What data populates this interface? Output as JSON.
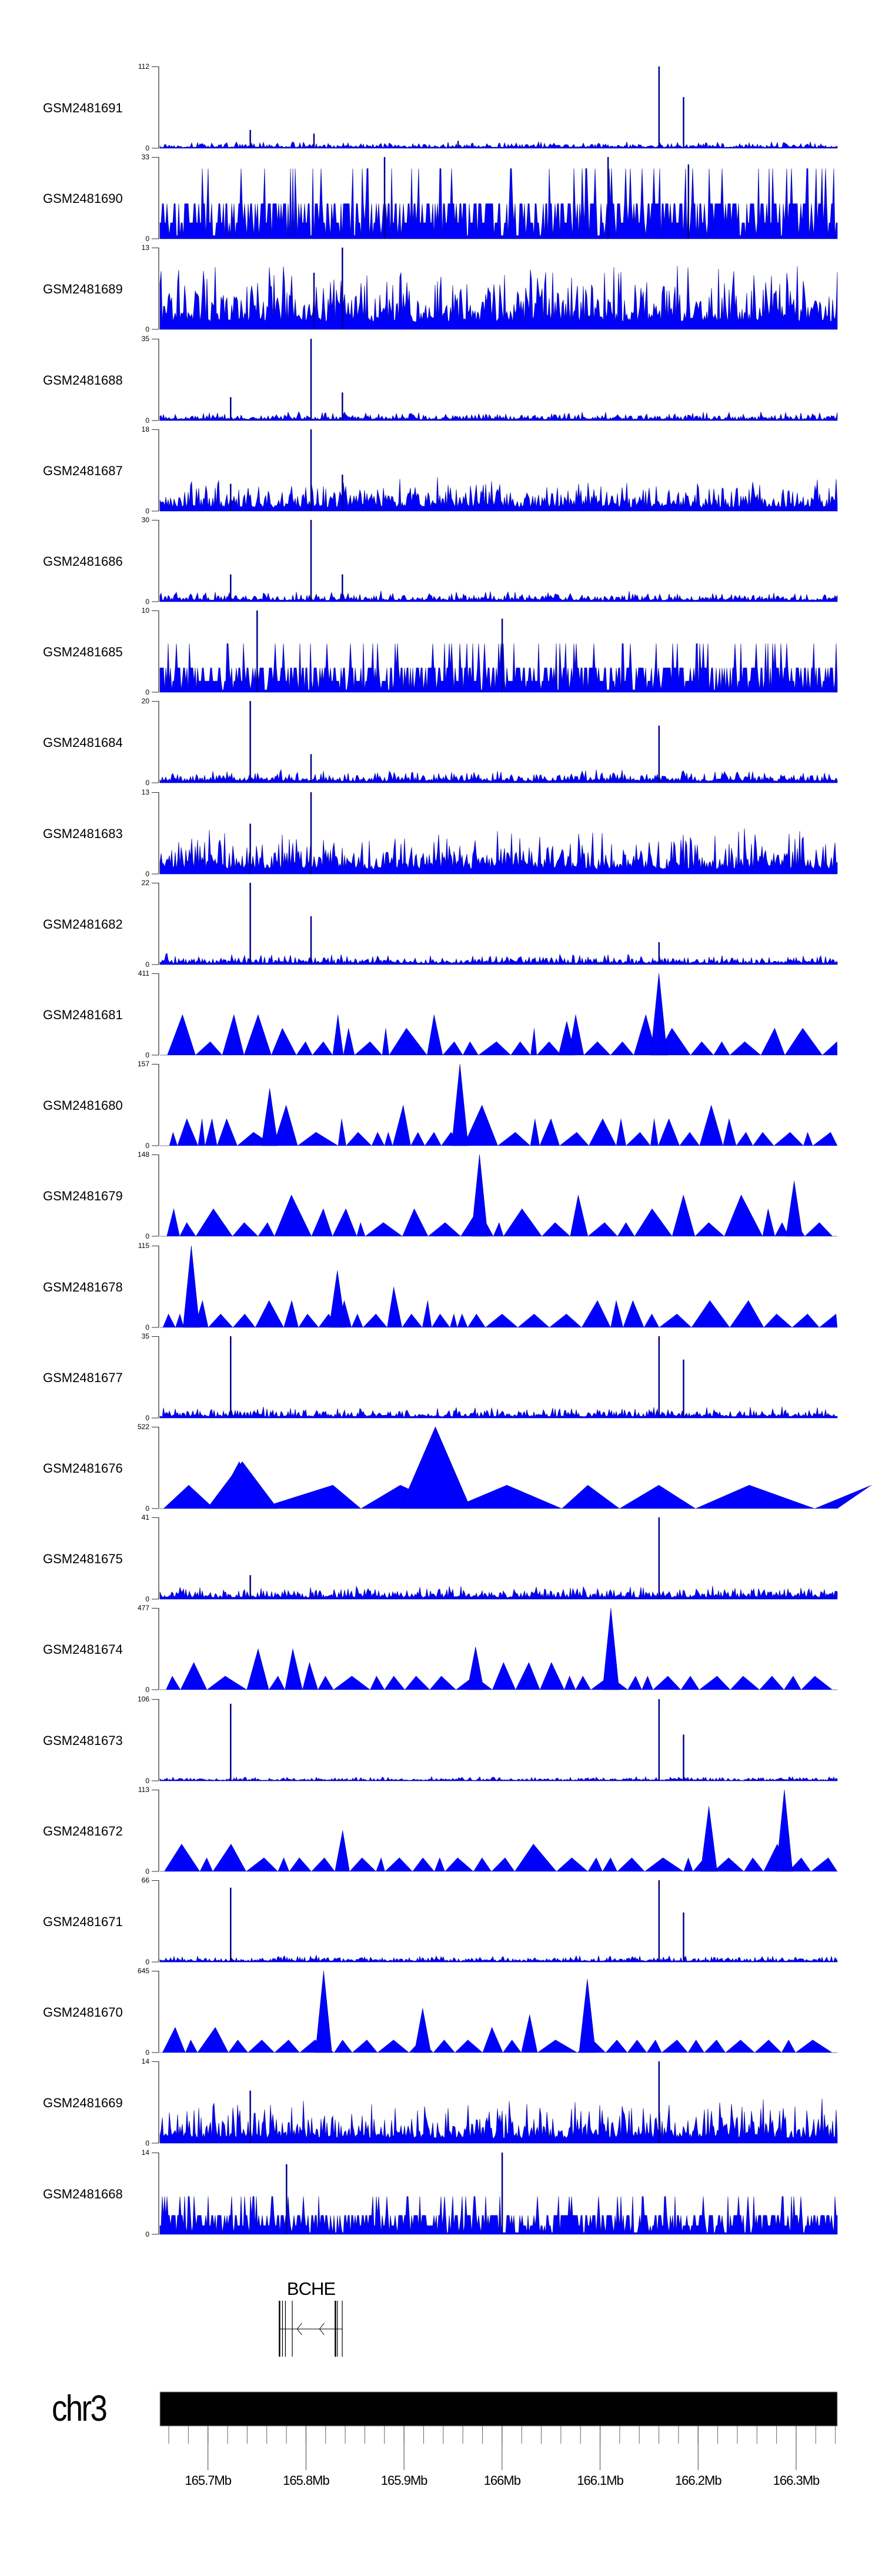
{
  "chart_data": {
    "type": "area",
    "title": "",
    "chromosome": "chr3",
    "xlim_mb": [
      165.651,
      166.342
    ],
    "x_ticks": [
      "165.7Mb",
      "165.8Mb",
      "165.9Mb",
      "166Mb",
      "166.1Mb",
      "166.2Mb",
      "166.3Mb"
    ],
    "x_tick_values": [
      165.7,
      165.8,
      165.9,
      166.0,
      166.1,
      166.2,
      166.3
    ],
    "minor_tick_step_mb": 0.02,
    "gene": {
      "name": "BCHE",
      "strand": "-",
      "start_mb": 165.773,
      "end_mb": 165.837,
      "exons_mb": [
        165.773,
        165.776,
        165.779,
        165.786,
        165.83,
        165.832,
        165.837
      ]
    },
    "series": [
      {
        "name": "GSM2481691",
        "ymax": 112,
        "ymin": 0,
        "style": "dense",
        "noise": 0.03,
        "peaks": [
          [
            166.16,
            112
          ],
          [
            166.185,
            70
          ],
          [
            165.743,
            25
          ],
          [
            165.808,
            20
          ],
          [
            165.955,
            10
          ]
        ]
      },
      {
        "name": "GSM2481690",
        "ymax": 33,
        "ymin": 0,
        "style": "quantized",
        "noise": 0.65,
        "peaks": [
          [
            165.88,
            33
          ],
          [
            166.108,
            33
          ],
          [
            166.19,
            30
          ]
        ]
      },
      {
        "name": "GSM2481689",
        "ymax": 13,
        "ymin": 0,
        "style": "dense",
        "noise": 0.3,
        "peaks": [
          [
            165.837,
            13
          ],
          [
            165.808,
            9
          ]
        ]
      },
      {
        "name": "GSM2481688",
        "ymax": 35,
        "ymin": 0,
        "style": "dense",
        "noise": 0.04,
        "peaks": [
          [
            165.805,
            35
          ],
          [
            165.837,
            12
          ],
          [
            165.723,
            10
          ]
        ]
      },
      {
        "name": "GSM2481687",
        "ymax": 18,
        "ymin": 0,
        "style": "dense",
        "noise": 0.15,
        "peaks": [
          [
            165.805,
            18
          ],
          [
            165.837,
            8
          ],
          [
            165.723,
            6
          ]
        ]
      },
      {
        "name": "GSM2481686",
        "ymax": 30,
        "ymin": 0,
        "style": "dense",
        "noise": 0.05,
        "peaks": [
          [
            165.805,
            30
          ],
          [
            165.723,
            10
          ],
          [
            165.837,
            10
          ]
        ]
      },
      {
        "name": "GSM2481685",
        "ymax": 10,
        "ymin": 0,
        "style": "quantized",
        "noise": 0.45,
        "peaks": [
          [
            165.75,
            10
          ],
          [
            166.0,
            9
          ]
        ]
      },
      {
        "name": "GSM2481684",
        "ymax": 20,
        "ymin": 0,
        "style": "dense",
        "noise": 0.06,
        "peaks": [
          [
            165.743,
            20
          ],
          [
            166.16,
            14
          ],
          [
            165.805,
            7
          ]
        ]
      },
      {
        "name": "GSM2481683",
        "ymax": 13,
        "ymin": 0,
        "style": "dense",
        "noise": 0.2,
        "peaks": [
          [
            165.805,
            13
          ],
          [
            165.743,
            8
          ]
        ]
      },
      {
        "name": "GSM2481682",
        "ymax": 22,
        "ymin": 0,
        "style": "dense",
        "noise": 0.05,
        "peaks": [
          [
            165.743,
            22
          ],
          [
            165.805,
            13
          ],
          [
            166.16,
            6
          ]
        ]
      },
      {
        "name": "GSM2481681",
        "ymax": 411,
        "ymin": 0,
        "style": "sparse",
        "unit": 68,
        "peaks": [
          [
            166.16,
            411
          ],
          [
            166.066,
            170
          ]
        ]
      },
      {
        "name": "GSM2481680",
        "ymax": 157,
        "ymin": 0,
        "style": "sparse",
        "unit": 26,
        "peaks": [
          [
            165.957,
            157
          ],
          [
            165.763,
            110
          ]
        ]
      },
      {
        "name": "GSM2481679",
        "ymax": 148,
        "ymin": 0,
        "style": "sparse",
        "unit": 25,
        "peaks": [
          [
            165.977,
            148
          ],
          [
            166.298,
            100
          ]
        ]
      },
      {
        "name": "GSM2481678",
        "ymax": 115,
        "ymin": 0,
        "style": "sparse",
        "unit": 19,
        "peaks": [
          [
            165.683,
            115
          ],
          [
            165.832,
            80
          ]
        ]
      },
      {
        "name": "GSM2481677",
        "ymax": 35,
        "ymin": 0,
        "style": "dense",
        "noise": 0.05,
        "peaks": [
          [
            165.723,
            35
          ],
          [
            166.16,
            35
          ],
          [
            166.185,
            25
          ]
        ]
      },
      {
        "name": "GSM2481676",
        "ymax": 522,
        "ymin": 0,
        "style": "sparse-wide",
        "unit": 150,
        "peaks": [
          [
            165.932,
            522
          ],
          [
            165.735,
            300
          ]
        ]
      },
      {
        "name": "GSM2481675",
        "ymax": 41,
        "ymin": 0,
        "style": "dense",
        "noise": 0.06,
        "peaks": [
          [
            166.16,
            41
          ],
          [
            165.743,
            12
          ]
        ]
      },
      {
        "name": "GSM2481674",
        "ymax": 477,
        "ymin": 0,
        "style": "sparse",
        "unit": 80,
        "peaks": [
          [
            166.111,
            477
          ],
          [
            165.973,
            250
          ]
        ]
      },
      {
        "name": "GSM2481673",
        "ymax": 106,
        "ymin": 0,
        "style": "dense",
        "noise": 0.02,
        "peaks": [
          [
            165.723,
            100
          ],
          [
            166.16,
            106
          ],
          [
            166.185,
            60
          ]
        ]
      },
      {
        "name": "GSM2481672",
        "ymax": 113,
        "ymin": 0,
        "style": "sparse",
        "unit": 19,
        "peaks": [
          [
            166.288,
            113
          ],
          [
            166.211,
            90
          ]
        ]
      },
      {
        "name": "GSM2481671",
        "ymax": 66,
        "ymin": 0,
        "style": "dense",
        "noise": 0.03,
        "peaks": [
          [
            165.723,
            60
          ],
          [
            166.16,
            66
          ],
          [
            166.185,
            40
          ]
        ]
      },
      {
        "name": "GSM2481670",
        "ymax": 645,
        "ymin": 0,
        "style": "sparse",
        "unit": 100,
        "peaks": [
          [
            165.818,
            645
          ],
          [
            166.087,
            580
          ],
          [
            165.919,
            350
          ]
        ]
      },
      {
        "name": "GSM2481669",
        "ymax": 14,
        "ymin": 0,
        "style": "dense",
        "noise": 0.2,
        "peaks": [
          [
            166.16,
            14
          ],
          [
            165.743,
            9
          ]
        ]
      },
      {
        "name": "GSM2481668",
        "ymax": 14,
        "ymin": 0,
        "style": "quantized",
        "noise": 0.35,
        "peaks": [
          [
            166.0,
            14
          ],
          [
            165.78,
            12
          ]
        ]
      }
    ]
  },
  "colors": {
    "fill": "#0000ff",
    "stroke": "#00008b",
    "axis": "#808080"
  }
}
